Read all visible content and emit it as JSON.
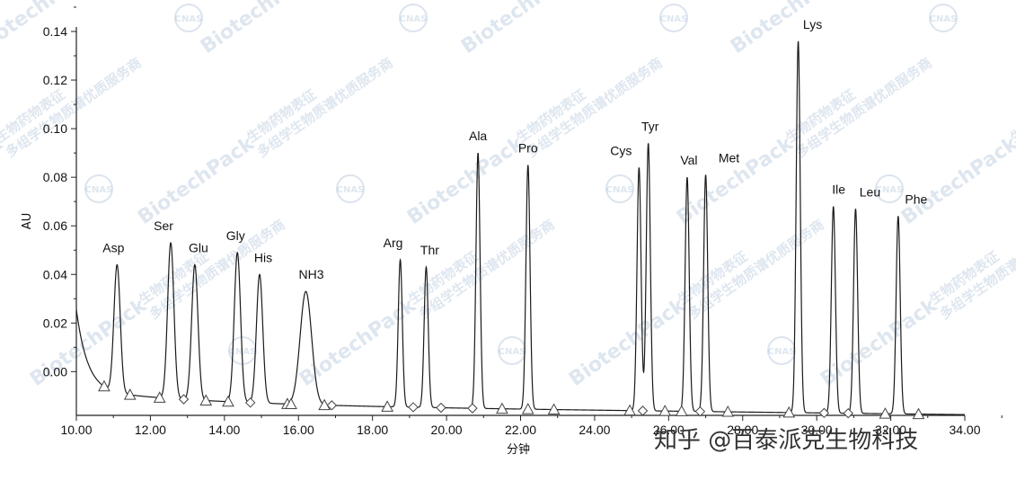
{
  "chart_data": {
    "type": "line",
    "xlabel": "分钟",
    "ylabel": "AU",
    "xlim": [
      10,
      34
    ],
    "ylim": [
      -0.018,
      0.14
    ],
    "xticks": [
      "10.00",
      "12.00",
      "14.00",
      "16.00",
      "18.00",
      "20.00",
      "22.00",
      "24.00",
      "26.00",
      "28.00",
      "30.00",
      "32.00",
      "34.00"
    ],
    "yticks": [
      "0.00",
      "0.02",
      "0.04",
      "0.06",
      "0.08",
      "0.10",
      "0.12",
      "0.14"
    ],
    "series": [
      {
        "peaks": [
          {
            "label": "Asp",
            "x": 11.1,
            "y": 0.044
          },
          {
            "label": "Ser",
            "x": 12.55,
            "y": 0.053
          },
          {
            "label": "Glu",
            "x": 13.2,
            "y": 0.044
          },
          {
            "label": "Gly",
            "x": 14.35,
            "y": 0.049
          },
          {
            "label": "His",
            "x": 14.95,
            "y": 0.04
          },
          {
            "label": "NH3",
            "x": 16.2,
            "y": 0.033
          },
          {
            "label": "Arg",
            "x": 18.75,
            "y": 0.046
          },
          {
            "label": "Thr",
            "x": 19.45,
            "y": 0.043
          },
          {
            "label": "Ala",
            "x": 20.85,
            "y": 0.09
          },
          {
            "label": "Pro",
            "x": 22.2,
            "y": 0.085
          },
          {
            "label": "Cys",
            "x": 25.2,
            "y": 0.084
          },
          {
            "label": "Tyr",
            "x": 25.45,
            "y": 0.094
          },
          {
            "label": "Val",
            "x": 26.5,
            "y": 0.08
          },
          {
            "label": "Met",
            "x": 27.0,
            "y": 0.081
          },
          {
            "label": "Lys",
            "x": 29.5,
            "y": 0.136
          },
          {
            "label": "Ile",
            "x": 30.45,
            "y": 0.068
          },
          {
            "label": "Leu",
            "x": 31.05,
            "y": 0.067
          },
          {
            "label": "Phe",
            "x": 32.2,
            "y": 0.064
          }
        ],
        "markers": [
          {
            "shape": "triangle",
            "x": 10.75
          },
          {
            "shape": "triangle",
            "x": 11.45
          },
          {
            "shape": "triangle",
            "x": 12.25
          },
          {
            "shape": "diamond",
            "x": 12.9
          },
          {
            "shape": "triangle",
            "x": 13.5
          },
          {
            "shape": "triangle",
            "x": 14.1
          },
          {
            "shape": "diamond",
            "x": 14.7
          },
          {
            "shape": "triangle",
            "x": 15.7
          },
          {
            "shape": "triangle",
            "x": 15.8
          },
          {
            "shape": "diamond",
            "x": 16.9
          },
          {
            "shape": "triangle",
            "x": 16.7
          },
          {
            "shape": "triangle",
            "x": 18.4
          },
          {
            "shape": "diamond",
            "x": 19.1
          },
          {
            "shape": "diamond",
            "x": 19.85
          },
          {
            "shape": "diamond",
            "x": 20.7
          },
          {
            "shape": "triangle",
            "x": 21.5
          },
          {
            "shape": "triangle",
            "x": 22.2
          },
          {
            "shape": "triangle",
            "x": 22.9
          },
          {
            "shape": "triangle",
            "x": 24.95
          },
          {
            "shape": "diamond",
            "x": 25.3
          },
          {
            "shape": "triangle",
            "x": 25.9
          },
          {
            "shape": "triangle",
            "x": 26.35
          },
          {
            "shape": "diamond",
            "x": 26.85
          },
          {
            "shape": "triangle",
            "x": 27.6
          },
          {
            "shape": "triangle",
            "x": 29.25
          },
          {
            "shape": "diamond",
            "x": 30.2
          },
          {
            "shape": "diamond",
            "x": 30.85
          },
          {
            "shape": "triangle",
            "x": 31.85
          },
          {
            "shape": "triangle",
            "x": 32.75
          }
        ]
      }
    ],
    "grid": false
  },
  "credit": "知乎 @百泰派克生物科技",
  "watermark": {
    "brand": "BiotechPack",
    "cnas": "CNAS",
    "slogan_1": "生物药物表征",
    "slogan_2": "多组学生物质谱优质服务商"
  },
  "colors": {
    "trace": "#1a1a1a",
    "axis": "#222222",
    "watermark": "#8aa7c8"
  }
}
